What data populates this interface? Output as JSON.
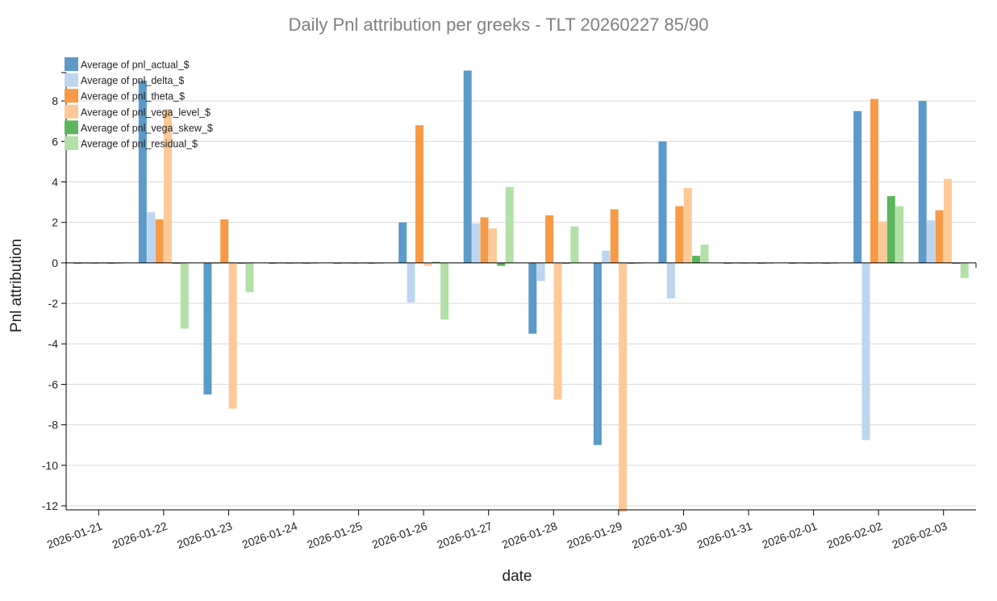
{
  "chart_data": {
    "type": "bar",
    "title": "Daily Pnl attribution per greeks - TLT 20260227 85/90",
    "xlabel": "date",
    "ylabel": "Pnl attribution",
    "ylim": [
      -12.2,
      9.4
    ],
    "yticks": [
      -12,
      -10,
      -8,
      -6,
      -4,
      -2,
      0,
      2,
      4,
      6,
      8
    ],
    "grid": true,
    "legend_position": "top-left",
    "categories": [
      "2026-01-21",
      "2026-01-22",
      "2026-01-23",
      "2026-01-24",
      "2026-01-25",
      "2026-01-26",
      "2026-01-27",
      "2026-01-28",
      "2026-01-29",
      "2026-01-30",
      "2026-01-31",
      "2026-02-01",
      "2026-02-02",
      "2026-02-03"
    ],
    "series": [
      {
        "name": "Average of pnl_actual_$",
        "color": "#5b9ac9",
        "values": [
          -0.05,
          9.0,
          -6.5,
          -0.05,
          -0.05,
          2.0,
          9.5,
          -3.5,
          -9.0,
          6.0,
          -0.05,
          -0.05,
          7.5,
          8.0
        ]
      },
      {
        "name": "Average of pnl_delta_$",
        "color": "#bdd5ef",
        "values": [
          -0.05,
          2.5,
          0.0,
          -0.05,
          -0.05,
          -1.95,
          1.95,
          -0.9,
          0.6,
          -1.75,
          -0.05,
          -0.05,
          -8.75,
          2.1
        ]
      },
      {
        "name": "Average of pnl_theta_$",
        "color": "#f79a45",
        "values": [
          -0.05,
          2.15,
          2.15,
          -0.05,
          -0.05,
          6.8,
          2.25,
          2.35,
          2.65,
          2.8,
          -0.05,
          -0.05,
          8.1,
          2.6
        ]
      },
      {
        "name": "Average of pnl_vega_level_$",
        "color": "#fcc997",
        "values": [
          -0.05,
          7.6,
          -7.2,
          -0.05,
          -0.05,
          -0.15,
          1.7,
          -6.75,
          -12.3,
          3.7,
          -0.05,
          -0.05,
          2.05,
          4.15
        ]
      },
      {
        "name": "Average of pnl_vega_skew_$",
        "color": "#5cb55c",
        "values": [
          -0.05,
          -0.05,
          0.0,
          -0.05,
          -0.05,
          0.05,
          -0.15,
          0.0,
          -0.05,
          0.35,
          -0.05,
          -0.05,
          3.3,
          -0.05
        ]
      },
      {
        "name": "Average of pnl_residual_$",
        "color": "#b3e0a6",
        "values": [
          -0.05,
          -3.25,
          -1.45,
          -0.05,
          -0.05,
          -2.8,
          3.75,
          1.8,
          -0.05,
          0.9,
          -0.05,
          -0.05,
          2.8,
          -0.75
        ]
      }
    ]
  }
}
